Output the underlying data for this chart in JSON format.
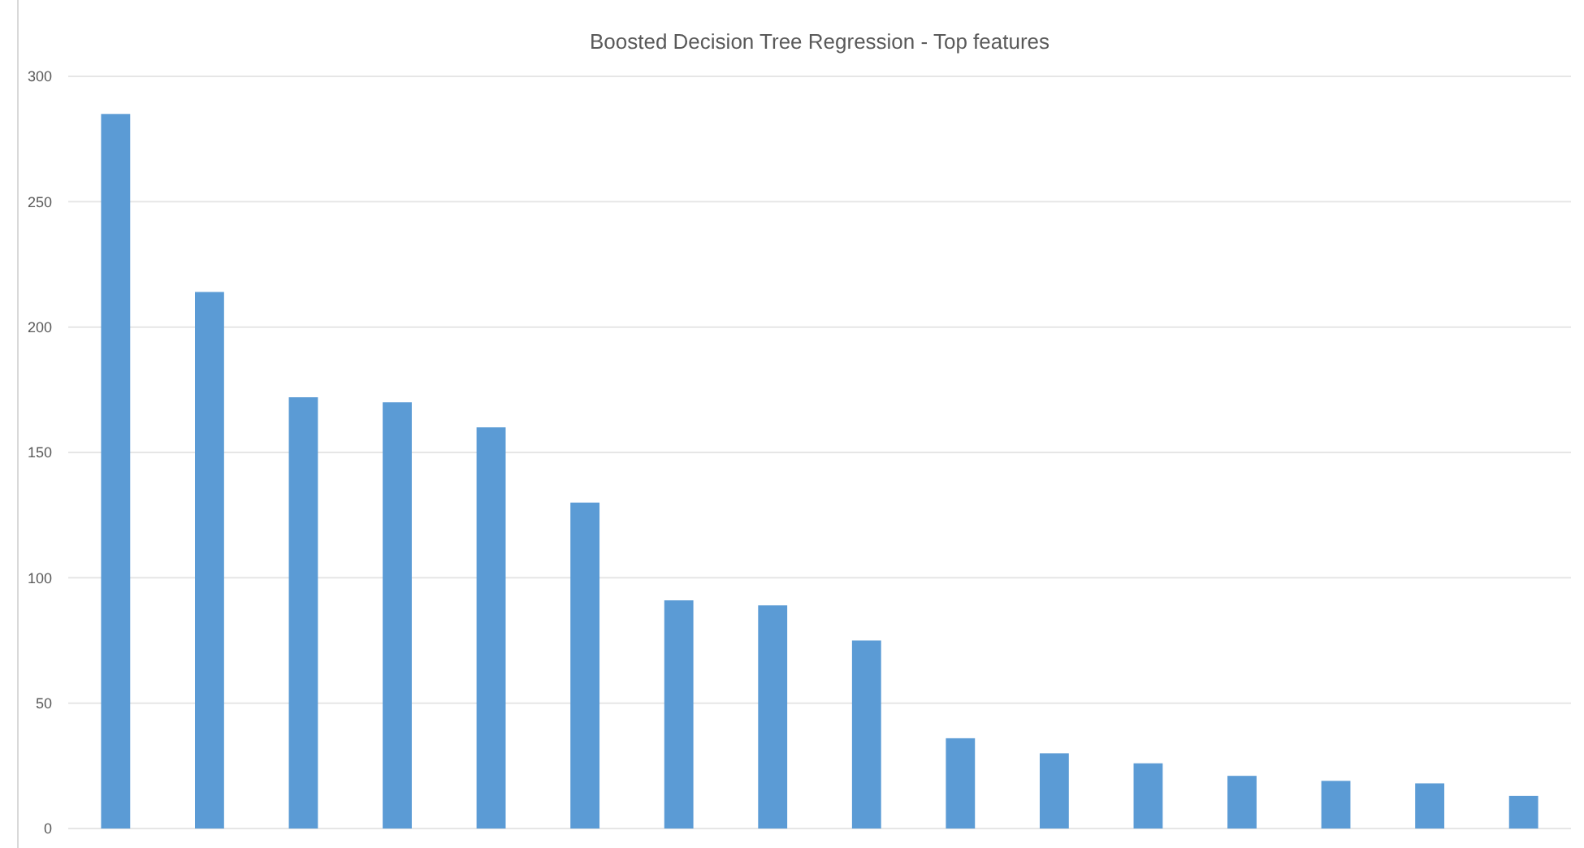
{
  "chart_data": {
    "type": "bar",
    "title": "Boosted Decision Tree Regression - Top features",
    "categories": [
      null,
      null,
      null,
      null,
      null,
      null,
      null,
      null,
      null,
      null,
      null,
      null,
      null,
      null,
      null,
      null
    ],
    "values": [
      285,
      214,
      172,
      170,
      160,
      130,
      91,
      89,
      75,
      36,
      30,
      26,
      21,
      19,
      18,
      13
    ],
    "color": "#5b9bd5",
    "ylim": [
      0,
      300
    ],
    "yticks": [
      0,
      50,
      100,
      150,
      200,
      250,
      300
    ],
    "grid": "y"
  }
}
